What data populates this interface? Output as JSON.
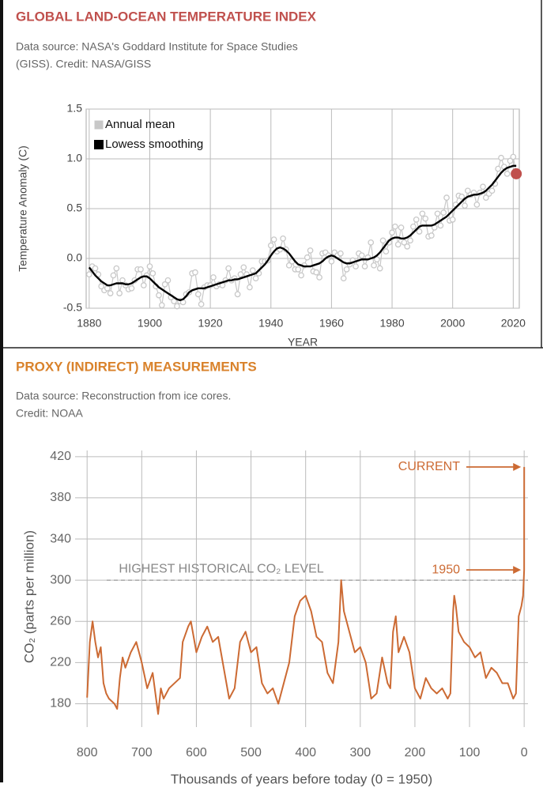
{
  "chart_data": [
    {
      "type": "line",
      "title": "GLOBAL LAND-OCEAN TEMPERATURE INDEX",
      "title_color": "#c0504d",
      "subtitle": [
        "Data source: NASA's Goddard Institute for Space Studies",
        "(GISS). Credit: NASA/GISS"
      ],
      "x_label": "YEAR",
      "y_label": "Temperature Anomaly (C)",
      "x": [
        1880,
        1881,
        1882,
        1883,
        1884,
        1885,
        1886,
        1887,
        1888,
        1889,
        1890,
        1891,
        1892,
        1893,
        1894,
        1895,
        1896,
        1897,
        1898,
        1899,
        1900,
        1901,
        1902,
        1903,
        1904,
        1905,
        1906,
        1907,
        1908,
        1909,
        1910,
        1911,
        1912,
        1913,
        1914,
        1915,
        1916,
        1917,
        1918,
        1919,
        1920,
        1921,
        1922,
        1923,
        1924,
        1925,
        1926,
        1927,
        1928,
        1929,
        1930,
        1931,
        1932,
        1933,
        1934,
        1935,
        1936,
        1937,
        1938,
        1939,
        1940,
        1941,
        1942,
        1943,
        1944,
        1945,
        1946,
        1947,
        1948,
        1949,
        1950,
        1951,
        1952,
        1953,
        1954,
        1955,
        1956,
        1957,
        1958,
        1959,
        1960,
        1961,
        1962,
        1963,
        1964,
        1965,
        1966,
        1967,
        1968,
        1969,
        1970,
        1971,
        1972,
        1973,
        1974,
        1975,
        1976,
        1977,
        1978,
        1979,
        1980,
        1981,
        1982,
        1983,
        1984,
        1985,
        1986,
        1987,
        1988,
        1989,
        1990,
        1991,
        1992,
        1993,
        1994,
        1995,
        1996,
        1997,
        1998,
        1999,
        2000,
        2001,
        2002,
        2003,
        2004,
        2005,
        2006,
        2007,
        2008,
        2009,
        2010,
        2011,
        2012,
        2013,
        2014,
        2015,
        2016,
        2017,
        2018,
        2019,
        2020,
        2021
      ],
      "series": [
        {
          "name": "Annual mean",
          "color": "#c8c8c8",
          "marker": true,
          "highlight_last_color": "#c0504d",
          "values": [
            -0.16,
            -0.08,
            -0.1,
            -0.16,
            -0.28,
            -0.32,
            -0.3,
            -0.35,
            -0.17,
            -0.1,
            -0.35,
            -0.22,
            -0.27,
            -0.31,
            -0.3,
            -0.22,
            -0.11,
            -0.11,
            -0.27,
            -0.17,
            -0.08,
            -0.15,
            -0.28,
            -0.37,
            -0.47,
            -0.26,
            -0.22,
            -0.39,
            -0.43,
            -0.48,
            -0.43,
            -0.44,
            -0.36,
            -0.34,
            -0.15,
            -0.14,
            -0.36,
            -0.46,
            -0.29,
            -0.27,
            -0.27,
            -0.19,
            -0.28,
            -0.26,
            -0.27,
            -0.22,
            -0.1,
            -0.22,
            -0.2,
            -0.36,
            -0.16,
            -0.09,
            -0.16,
            -0.29,
            -0.12,
            -0.2,
            -0.15,
            -0.03,
            -0.03,
            -0.02,
            0.13,
            0.19,
            0.07,
            0.09,
            0.2,
            0.09,
            -0.07,
            -0.03,
            -0.11,
            -0.11,
            -0.17,
            -0.07,
            0.01,
            0.08,
            -0.13,
            -0.14,
            -0.19,
            0.05,
            0.06,
            0.03,
            -0.03,
            0.06,
            0.03,
            0.05,
            -0.2,
            -0.11,
            -0.06,
            -0.02,
            -0.08,
            0.05,
            0.03,
            -0.08,
            0.01,
            0.16,
            -0.07,
            -0.01,
            -0.1,
            0.18,
            0.07,
            0.16,
            0.26,
            0.32,
            0.14,
            0.31,
            0.16,
            0.12,
            0.18,
            0.32,
            0.39,
            0.27,
            0.45,
            0.4,
            0.22,
            0.23,
            0.31,
            0.45,
            0.33,
            0.46,
            0.61,
            0.38,
            0.39,
            0.54,
            0.63,
            0.62,
            0.53,
            0.68,
            0.64,
            0.66,
            0.54,
            0.66,
            0.72,
            0.61,
            0.65,
            0.68,
            0.75,
            0.9,
            1.01,
            0.92,
            0.85,
            0.98,
            1.02,
            0.85
          ]
        },
        {
          "name": "Lowess smoothing",
          "color": "#000000",
          "values": [
            -0.09,
            -0.13,
            -0.17,
            -0.2,
            -0.23,
            -0.25,
            -0.27,
            -0.27,
            -0.26,
            -0.25,
            -0.25,
            -0.25,
            -0.26,
            -0.26,
            -0.25,
            -0.23,
            -0.21,
            -0.19,
            -0.18,
            -0.18,
            -0.2,
            -0.23,
            -0.26,
            -0.29,
            -0.31,
            -0.33,
            -0.35,
            -0.37,
            -0.39,
            -0.41,
            -0.42,
            -0.41,
            -0.38,
            -0.34,
            -0.32,
            -0.31,
            -0.3,
            -0.3,
            -0.3,
            -0.29,
            -0.28,
            -0.27,
            -0.26,
            -0.25,
            -0.24,
            -0.23,
            -0.22,
            -0.22,
            -0.21,
            -0.21,
            -0.2,
            -0.19,
            -0.18,
            -0.17,
            -0.16,
            -0.15,
            -0.12,
            -0.09,
            -0.06,
            -0.02,
            0.03,
            0.07,
            0.1,
            0.11,
            0.1,
            0.08,
            0.05,
            0.01,
            -0.03,
            -0.06,
            -0.07,
            -0.08,
            -0.08,
            -0.08,
            -0.07,
            -0.06,
            -0.05,
            -0.03,
            0.0,
            0.02,
            0.03,
            0.02,
            0.0,
            -0.02,
            -0.04,
            -0.05,
            -0.05,
            -0.04,
            -0.03,
            -0.02,
            -0.01,
            -0.01,
            -0.01,
            0.0,
            0.01,
            0.03,
            0.06,
            0.1,
            0.14,
            0.18,
            0.2,
            0.21,
            0.21,
            0.2,
            0.2,
            0.21,
            0.23,
            0.26,
            0.29,
            0.32,
            0.33,
            0.33,
            0.33,
            0.33,
            0.34,
            0.36,
            0.38,
            0.4,
            0.42,
            0.45,
            0.48,
            0.51,
            0.54,
            0.57,
            0.6,
            0.62,
            0.63,
            0.64,
            0.64,
            0.65,
            0.66,
            0.68,
            0.71,
            0.74,
            0.78,
            0.82,
            0.86,
            0.89,
            0.91,
            0.92,
            0.93,
            0.93
          ]
        }
      ],
      "xlim": [
        1879,
        2022
      ],
      "xticks": [
        1880,
        1900,
        1920,
        1940,
        1960,
        1980,
        2000,
        2020
      ],
      "ylim": [
        -0.5,
        1.5
      ],
      "yticks": [
        -0.5,
        {
          "value": 0,
          "label": "0.0"
        },
        0.5,
        {
          "value": 1,
          "label": "1.0"
        },
        1.5
      ],
      "grid": true,
      "legend": "upper left"
    },
    {
      "type": "line",
      "title": "PROXY (INDIRECT) MEASUREMENTS",
      "title_color": "#d9822b",
      "subtitle": [
        "Data source: Reconstruction from ice cores.",
        "Credit: NOAA"
      ],
      "x_label": "Thousands of years before today (0 = 1950)",
      "y_label": "CO₂ (parts per million)",
      "color": "#cc6a33",
      "x": [
        800,
        795,
        790,
        785,
        780,
        775,
        770,
        765,
        760,
        750,
        745,
        740,
        735,
        730,
        720,
        710,
        700,
        690,
        680,
        670,
        665,
        660,
        650,
        640,
        630,
        625,
        615,
        610,
        600,
        590,
        580,
        570,
        560,
        550,
        540,
        530,
        520,
        510,
        500,
        490,
        480,
        470,
        460,
        450,
        440,
        430,
        420,
        410,
        400,
        390,
        380,
        370,
        360,
        350,
        340,
        335,
        330,
        320,
        310,
        300,
        290,
        280,
        270,
        260,
        250,
        245,
        240,
        235,
        230,
        220,
        210,
        200,
        190,
        180,
        170,
        160,
        150,
        140,
        135,
        130,
        128,
        125,
        120,
        110,
        100,
        90,
        80,
        70,
        60,
        50,
        40,
        30,
        20,
        15,
        10,
        5,
        2,
        0,
        -0.07
      ],
      "values": [
        186,
        240,
        260,
        240,
        225,
        235,
        200,
        190,
        185,
        180,
        175,
        205,
        225,
        215,
        230,
        240,
        220,
        195,
        210,
        170,
        195,
        185,
        195,
        200,
        205,
        240,
        255,
        260,
        230,
        245,
        255,
        240,
        245,
        215,
        185,
        195,
        240,
        250,
        230,
        235,
        200,
        190,
        195,
        180,
        200,
        220,
        265,
        280,
        285,
        270,
        245,
        240,
        210,
        200,
        240,
        300,
        270,
        250,
        230,
        235,
        220,
        185,
        190,
        225,
        200,
        195,
        250,
        265,
        230,
        245,
        230,
        195,
        185,
        205,
        195,
        190,
        195,
        185,
        190,
        270,
        285,
        275,
        250,
        240,
        235,
        225,
        230,
        205,
        215,
        210,
        200,
        200,
        185,
        190,
        265,
        275,
        285,
        310,
        410
      ],
      "xlim": [
        822,
        -7
      ],
      "xticks": [
        800,
        700,
        600,
        500,
        400,
        300,
        200,
        100,
        0
      ],
      "ylim": [
        142,
        426
      ],
      "yticks": [
        180,
        220,
        260,
        300,
        340,
        380,
        420
      ],
      "grid": true,
      "reference_line": 300,
      "annotations": [
        "HIGHEST HISTORICAL CO₂ LEVEL",
        "1950",
        "CURRENT"
      ]
    }
  ]
}
